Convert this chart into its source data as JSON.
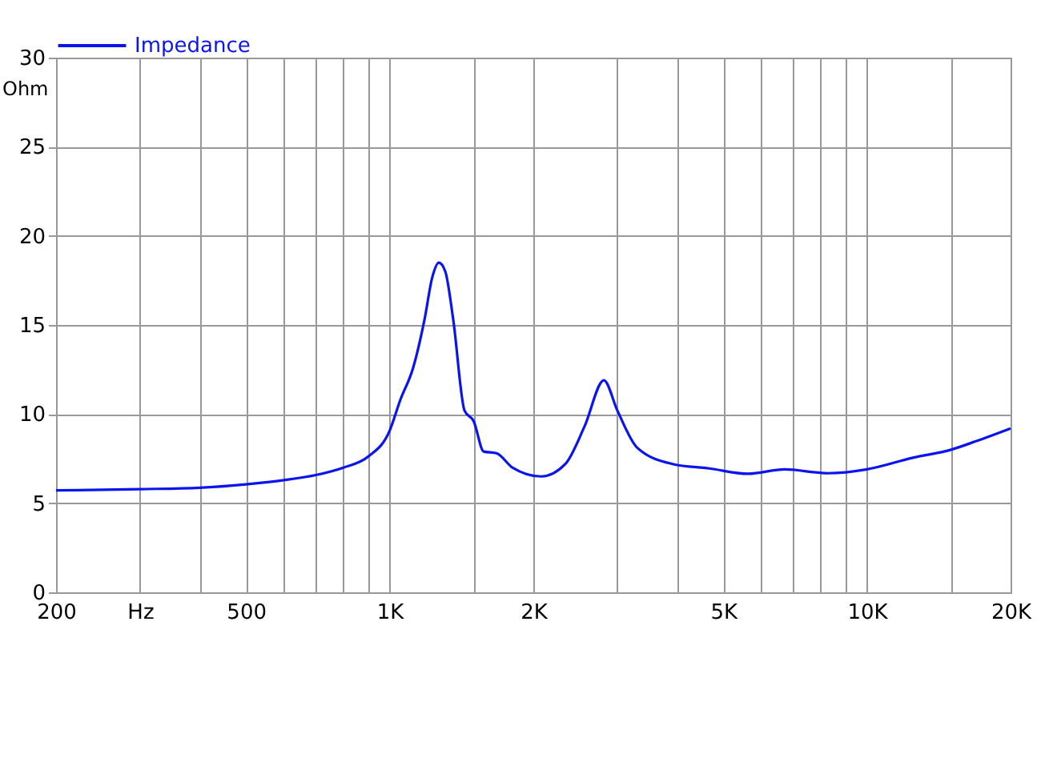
{
  "chart_data": {
    "type": "line",
    "ylabel": "Ohm",
    "log": "x",
    "x": [
      200,
      300,
      400,
      500,
      600,
      700,
      800,
      900,
      1000,
      1053,
      1120,
      1183,
      1229,
      1268,
      1308,
      1359,
      1435,
      1500,
      1574,
      1675,
      1808,
      2078,
      2334,
      2560,
      2811,
      3000,
      3305,
      3917,
      4675,
      5634,
      6724,
      8284,
      10000,
      12480,
      15000,
      17010,
      20000
    ],
    "series": [
      {
        "name": "Impedance",
        "color": "#0a14f0",
        "values": [
          5.72,
          5.79,
          5.87,
          6.06,
          6.29,
          6.58,
          7.0,
          7.6,
          9.07,
          10.8,
          12.6,
          15.3,
          17.7,
          18.5,
          18.0,
          15.3,
          10.2,
          9.6,
          7.9,
          7.8,
          7.0,
          6.5,
          7.2,
          9.3,
          11.9,
          10.2,
          8.1,
          7.2,
          6.95,
          6.65,
          6.9,
          6.68,
          6.9,
          7.55,
          8.0,
          8.5,
          9.2
        ]
      }
    ],
    "xlim": [
      200,
      20000
    ],
    "xticks": [
      200,
      {
        "value": 300,
        "label": "Hz"
      },
      {
        "value": 400,
        "label": null
      },
      500,
      {
        "value": 600,
        "label": null
      },
      {
        "value": 700,
        "label": null
      },
      {
        "value": 800,
        "label": null
      },
      {
        "value": 900,
        "label": null
      },
      {
        "value": 1000,
        "label": "1K"
      },
      {
        "value": 1500,
        "label": null
      },
      {
        "value": 2000,
        "label": "2K"
      },
      {
        "value": 3000,
        "label": null
      },
      {
        "value": 4000,
        "label": null
      },
      {
        "value": 5000,
        "label": "5K"
      },
      {
        "value": 6000,
        "label": null
      },
      {
        "value": 7000,
        "label": null
      },
      {
        "value": 8000,
        "label": null
      },
      {
        "value": 9000,
        "label": null
      },
      {
        "value": 10000,
        "label": "10K"
      },
      {
        "value": 15000,
        "label": null
      },
      {
        "value": 20000,
        "label": "20K"
      }
    ],
    "ylim": [
      0,
      30
    ],
    "yticks": [
      0,
      5,
      10,
      15,
      20,
      25,
      30
    ],
    "grid": true,
    "legend": "top left",
    "marker": "none",
    "line_style": "solid"
  }
}
